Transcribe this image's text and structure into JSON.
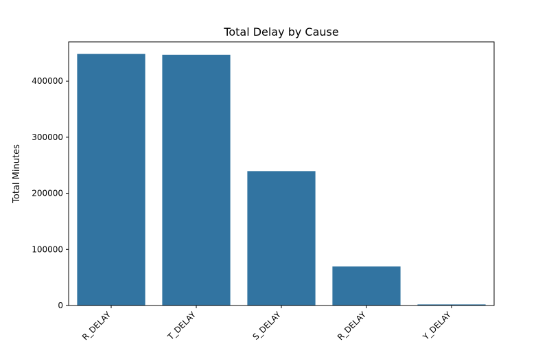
{
  "chart_data": {
    "type": "bar",
    "title": "Total Delay by Cause",
    "xlabel": "",
    "ylabel": "Total Minutes",
    "categories": [
      "CARRIER_DELAY",
      "LATE_AIRCRAFT_DELAY",
      "NAS_DELAY",
      "WEATHER_DELAY",
      "SECURITY_DELAY"
    ],
    "tick_labels_visible": [
      "R_DELAY",
      "T_DELAY",
      "S_DELAY",
      "R_DELAY",
      "Y_DELAY"
    ],
    "values": [
      448500,
      447000,
      239500,
      69500,
      2000
    ],
    "ylim": [
      0,
      470000
    ],
    "yticks": [
      0,
      100000,
      200000,
      300000,
      400000
    ],
    "grid": false,
    "bar_color": "#3274a1"
  }
}
